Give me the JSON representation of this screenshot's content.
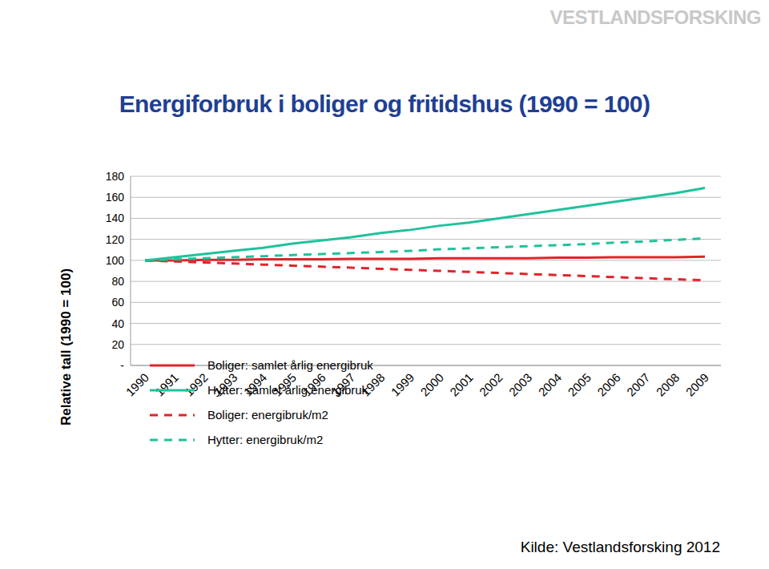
{
  "chart_data": {
    "type": "line",
    "title": "Energiforbruk i boliger og fritidshus (1990 = 100)",
    "y_label": "Relative tall (1990 = 100)",
    "annotations": [
      "VESTLANDSFORSKING",
      "Kilde: Vestlandsforsking 2012"
    ],
    "categories": [
      "1990",
      "1991",
      "1992",
      "1993",
      "1994",
      "1995",
      "1996",
      "1997",
      "1998",
      "1999",
      "2000",
      "2001",
      "2002",
      "2003",
      "2004",
      "2005",
      "2006",
      "2007",
      "2008",
      "2009"
    ],
    "series": [
      {
        "name": "Boliger: samlet årlig energibruk",
        "color": "#e0252b",
        "line_style": "solid",
        "values": [
          100,
          100,
          100.5,
          100.5,
          101,
          101,
          101,
          101.5,
          101.5,
          101.5,
          102,
          102,
          102,
          102,
          102.5,
          102.5,
          103,
          103,
          103,
          103.5
        ]
      },
      {
        "name": "Hytter: samlet årlig energibruk",
        "color": "#1fc29c",
        "line_style": "solid",
        "values": [
          100,
          103,
          106,
          109,
          112,
          116,
          119,
          122,
          126,
          129,
          133,
          136,
          140,
          144,
          148,
          152,
          156,
          160,
          164,
          169
        ]
      },
      {
        "name": "Boliger: energibruk/m2",
        "color": "#e0252b",
        "line_style": "dashed",
        "values": [
          100,
          99,
          98,
          97,
          96,
          95,
          94,
          93,
          92,
          91,
          90,
          89,
          88,
          87,
          86,
          85,
          84,
          83,
          82,
          81
        ]
      },
      {
        "name": "Hytter: energibruk/m2",
        "color": "#1fc29c",
        "line_style": "dashed",
        "values": [
          100,
          101,
          102,
          103,
          104,
          105,
          106,
          107,
          108,
          109,
          110.5,
          111.5,
          112.5,
          113.5,
          114.5,
          115.5,
          117,
          118,
          119.5,
          121
        ]
      }
    ],
    "ylim": [
      0,
      180
    ],
    "yticks": [
      {
        "value": 0,
        "label": "-"
      },
      20,
      40,
      60,
      80,
      100,
      120,
      140,
      160,
      180
    ],
    "grid": true,
    "legend": "lower left",
    "marker": "none"
  }
}
